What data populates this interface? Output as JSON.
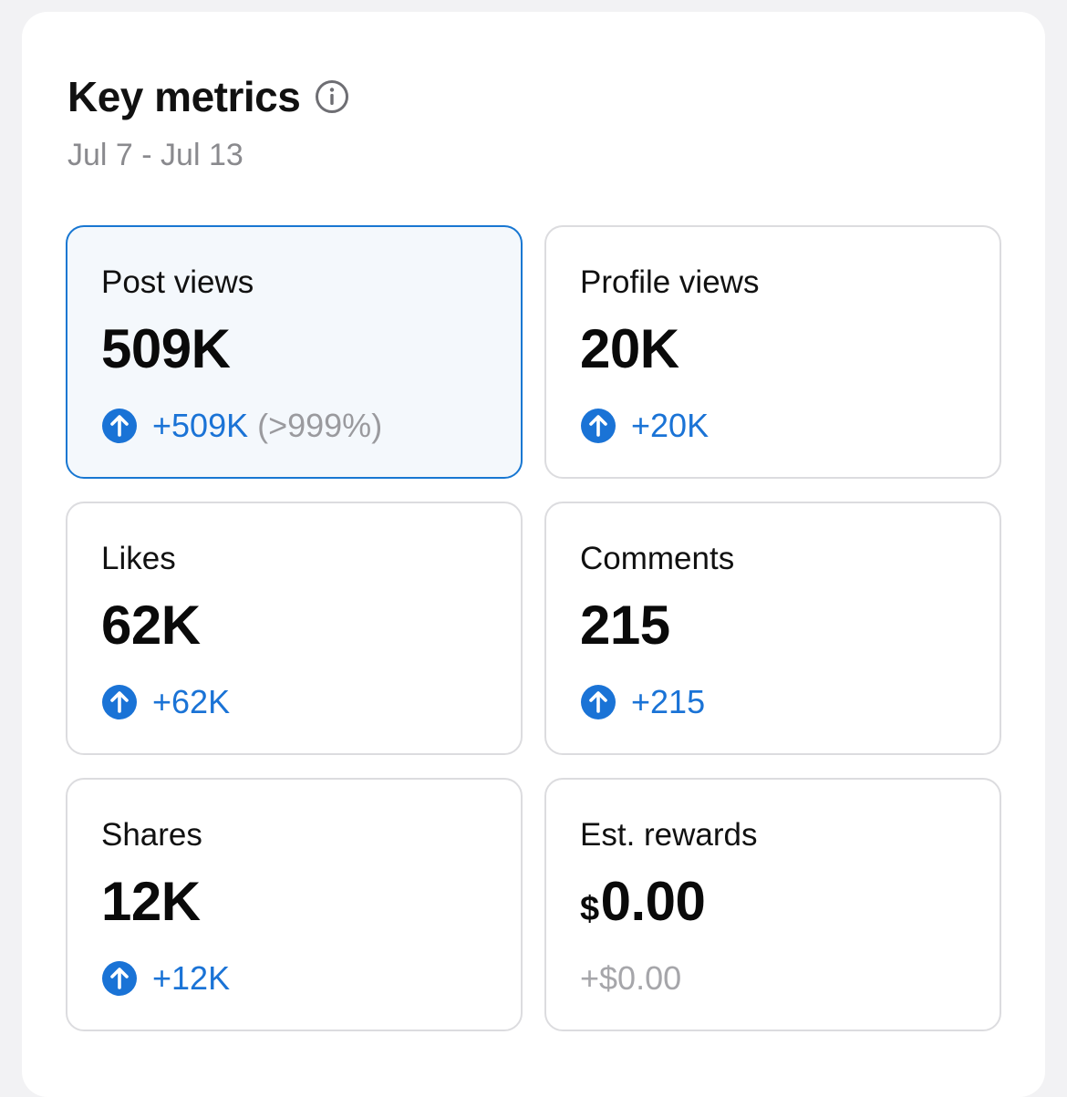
{
  "header": {
    "title": "Key metrics",
    "date_range": "Jul 7 - Jul 13"
  },
  "colors": {
    "accent": "#1877d2",
    "positive": "#1a73d6",
    "muted": "#9a9a9e"
  },
  "metrics": [
    {
      "label": "Post views",
      "value": "509K",
      "change": "+509K",
      "percent": "(>999%)",
      "selected": true
    },
    {
      "label": "Profile views",
      "value": "20K",
      "change": "+20K"
    },
    {
      "label": "Likes",
      "value": "62K",
      "change": "+62K"
    },
    {
      "label": "Comments",
      "value": "215",
      "change": "+215"
    },
    {
      "label": "Shares",
      "value": "12K",
      "change": "+12K"
    },
    {
      "label": "Est. rewards",
      "currency": "$",
      "value": "0.00",
      "change": "+$0.00"
    }
  ],
  "icons": {
    "info": "info-icon",
    "increase": "arrow-up-circle-icon"
  }
}
